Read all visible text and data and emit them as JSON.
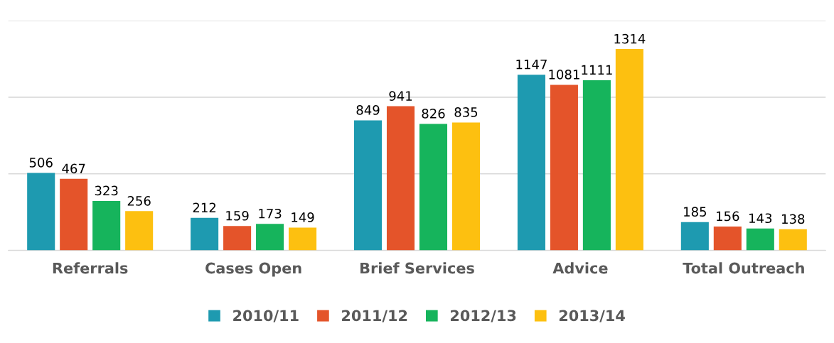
{
  "chart_data": {
    "type": "bar",
    "categories": [
      "Referrals",
      "Cases Open",
      "Brief Services",
      "Advice",
      "Total Outreach"
    ],
    "series": [
      {
        "name": "2010/11",
        "color": "#1e9ab0",
        "values": [
          506,
          212,
          849,
          1147,
          185
        ]
      },
      {
        "name": "2011/12",
        "color": "#e4542a",
        "values": [
          467,
          159,
          941,
          1081,
          156
        ]
      },
      {
        "name": "2012/13",
        "color": "#16b45c",
        "values": [
          323,
          173,
          826,
          1111,
          143
        ]
      },
      {
        "name": "2013/14",
        "color": "#fdc010",
        "values": [
          256,
          149,
          835,
          1314,
          138
        ]
      }
    ],
    "ylim": [
      0,
      1500
    ],
    "yticks": [
      {
        "value": 0,
        "label": null
      },
      {
        "value": 500,
        "label": null
      },
      {
        "value": 1000,
        "label": null
      },
      {
        "value": 1500,
        "label": null
      }
    ],
    "grid": "y",
    "legend": "bottom",
    "data_labels": true,
    "tick_labels": "x"
  }
}
